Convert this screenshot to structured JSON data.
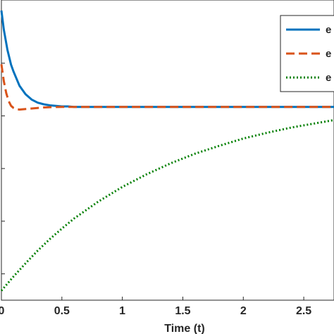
{
  "chart_data": {
    "type": "line",
    "title": "",
    "xlabel": "Time (t)",
    "ylabel": "",
    "xlim": [
      0,
      2.75
    ],
    "ylim": [
      -0.45,
      0.12
    ],
    "xticks": [
      0,
      0.5,
      1,
      1.5,
      2,
      2.5
    ],
    "xtick_labels": [
      "0",
      "0.5",
      "1",
      "1.5",
      "2",
      "2.5"
    ],
    "grid": false,
    "legend_position": "top-right",
    "series": [
      {
        "name": "e",
        "color": "#0072BD",
        "dash": "solid",
        "x": [
          0,
          0.02,
          0.05,
          0.08,
          0.1,
          0.15,
          0.2,
          0.25,
          0.3,
          0.35,
          0.4,
          0.45,
          0.5,
          0.55,
          0.6,
          0.7,
          0.8,
          1.0,
          1.5,
          2.0,
          2.5,
          2.75
        ],
        "y": [
          0.1,
          0.064,
          0.025,
          -0.003,
          -0.016,
          -0.043,
          -0.059,
          -0.069,
          -0.075,
          -0.078,
          -0.08,
          -0.081,
          -0.082,
          -0.082,
          -0.083,
          -0.083,
          -0.083,
          -0.083,
          -0.083,
          -0.083,
          -0.083,
          -0.083
        ]
      },
      {
        "name": "e",
        "color": "#D95319",
        "dash": "dashed",
        "x": [
          0,
          0.02,
          0.04,
          0.06,
          0.08,
          0.1,
          0.12,
          0.15,
          0.2,
          0.25,
          0.3,
          0.35,
          0.4,
          0.5,
          0.6,
          0.8,
          1.0,
          1.5,
          2.0,
          2.5,
          2.75
        ],
        "y": [
          -0.002,
          -0.034,
          -0.057,
          -0.072,
          -0.081,
          -0.085,
          -0.087,
          -0.088,
          -0.087,
          -0.086,
          -0.085,
          -0.084,
          -0.0835,
          -0.083,
          -0.083,
          -0.083,
          -0.083,
          -0.083,
          -0.083,
          -0.083,
          -0.083
        ]
      },
      {
        "name": "e",
        "color": "#007F00",
        "dash": "dotted",
        "x": [
          0,
          0.1,
          0.2,
          0.3,
          0.4,
          0.5,
          0.6,
          0.8,
          1.0,
          1.2,
          1.4,
          1.6,
          1.8,
          2.0,
          2.2,
          2.4,
          2.6,
          2.75
        ],
        "y": [
          -0.432,
          -0.405,
          -0.38,
          -0.356,
          -0.334,
          -0.314,
          -0.295,
          -0.263,
          -0.235,
          -0.211,
          -0.19,
          -0.172,
          -0.157,
          -0.143,
          -0.132,
          -0.122,
          -0.114,
          -0.108
        ]
      }
    ]
  }
}
